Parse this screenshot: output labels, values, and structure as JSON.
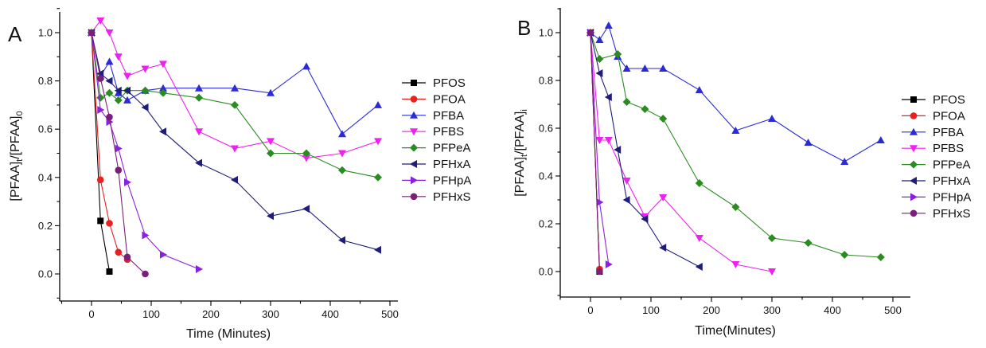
{
  "panels": [
    {
      "letter": "A",
      "x_label": "Time (Minutes)",
      "y_label_parts": [
        "[PFAA]",
        "t",
        "/[PFAA]",
        "0"
      ]
    },
    {
      "letter": "B",
      "x_label": "Time(Minutes)",
      "y_label_parts": [
        "[PFAA]",
        "t",
        "/[PFAA]",
        "i"
      ]
    }
  ],
  "chart_data": [
    {
      "type": "line",
      "panel": "A",
      "xlim": [
        -50,
        520
      ],
      "ylim": [
        -0.1,
        1.1
      ],
      "x_ticks": [
        0,
        100,
        200,
        300,
        400,
        500
      ],
      "y_ticks": [
        0.0,
        0.2,
        0.4,
        0.6,
        0.8,
        1.0
      ],
      "x_tick_labels": [
        "0",
        "100",
        "200",
        "300",
        "400",
        "500"
      ],
      "y_tick_labels": [
        "0.0",
        "0.2",
        "0.4",
        "0.6",
        "0.8",
        "1.0"
      ],
      "xlabel": "Time (Minutes)",
      "ylabel": "[PFAA]t/[PFAA]0",
      "legend_position": "right",
      "series": [
        {
          "name": "PFOS",
          "color": "#000000",
          "marker": "square",
          "x": [
            0,
            15,
            30
          ],
          "y": [
            1.0,
            0.22,
            0.01
          ]
        },
        {
          "name": "PFOA",
          "color": "#e8201f",
          "marker": "circle",
          "x": [
            0,
            15,
            30,
            45,
            60
          ],
          "y": [
            1.0,
            0.39,
            0.21,
            0.09,
            0.06
          ]
        },
        {
          "name": "PFBA",
          "color": "#2a2ad8",
          "marker": "triangle-up",
          "x": [
            0,
            15,
            30,
            45,
            60,
            90,
            120,
            180,
            240,
            300,
            360,
            420,
            480
          ],
          "y": [
            1.0,
            0.82,
            0.88,
            0.75,
            0.72,
            0.76,
            0.77,
            0.77,
            0.77,
            0.75,
            0.86,
            0.58,
            0.7
          ]
        },
        {
          "name": "PFBS",
          "color": "#f020f0",
          "marker": "triangle-down",
          "x": [
            0,
            15,
            30,
            45,
            60,
            90,
            120,
            180,
            240,
            300,
            360,
            420,
            480
          ],
          "y": [
            1.0,
            1.05,
            1.0,
            0.9,
            0.82,
            0.85,
            0.87,
            0.59,
            0.52,
            0.55,
            0.48,
            0.5,
            0.55
          ]
        },
        {
          "name": "PFPeA",
          "color": "#2a8c20",
          "marker": "diamond",
          "x": [
            0,
            15,
            30,
            45,
            60,
            90,
            120,
            180,
            240,
            300,
            360,
            420,
            480
          ],
          "y": [
            1.0,
            0.73,
            0.75,
            0.72,
            0.76,
            0.76,
            0.75,
            0.73,
            0.7,
            0.5,
            0.5,
            0.43,
            0.4
          ]
        },
        {
          "name": "PFHxA",
          "color": "#1e1e7a",
          "marker": "triangle-left",
          "x": [
            0,
            15,
            30,
            45,
            60,
            90,
            120,
            180,
            240,
            300,
            360,
            420,
            480
          ],
          "y": [
            1.0,
            0.83,
            0.8,
            0.76,
            0.76,
            0.69,
            0.59,
            0.46,
            0.39,
            0.24,
            0.27,
            0.14,
            0.1
          ]
        },
        {
          "name": "PFHpA",
          "color": "#8a20e0",
          "marker": "triangle-right",
          "x": [
            0,
            15,
            30,
            45,
            60,
            90,
            120,
            180
          ],
          "y": [
            1.0,
            0.68,
            0.63,
            0.52,
            0.38,
            0.16,
            0.08,
            0.02
          ]
        },
        {
          "name": "PFHxS",
          "color": "#7a1e7a",
          "marker": "circle",
          "x": [
            0,
            15,
            30,
            45,
            60,
            90
          ],
          "y": [
            1.0,
            0.81,
            0.65,
            0.43,
            0.07,
            0.0
          ]
        }
      ]
    },
    {
      "type": "line",
      "panel": "B",
      "xlim": [
        -50,
        520
      ],
      "ylim": [
        -0.1,
        1.1
      ],
      "x_ticks": [
        0,
        100,
        200,
        300,
        400,
        500
      ],
      "y_ticks": [
        0.0,
        0.2,
        0.4,
        0.6,
        0.8,
        1.0
      ],
      "x_tick_labels": [
        "0",
        "100",
        "200",
        "300",
        "400",
        "500"
      ],
      "y_tick_labels": [
        "0.0",
        "0.2",
        "0.4",
        "0.6",
        "0.8",
        "1.0"
      ],
      "xlabel": "Time(Minutes)",
      "ylabel": "[PFAA]t/[PFAA]i",
      "legend_position": "right",
      "series": [
        {
          "name": "PFOS",
          "color": "#000000",
          "marker": "square",
          "x": [
            0,
            15
          ],
          "y": [
            1.0,
            0.0
          ]
        },
        {
          "name": "PFOA",
          "color": "#e8201f",
          "marker": "circle",
          "x": [
            0,
            15
          ],
          "y": [
            1.0,
            0.01
          ]
        },
        {
          "name": "PFBA",
          "color": "#2a2ad8",
          "marker": "triangle-up",
          "x": [
            0,
            15,
            30,
            45,
            60,
            90,
            120,
            180,
            240,
            300,
            360,
            420,
            480
          ],
          "y": [
            1.0,
            0.97,
            1.03,
            0.9,
            0.85,
            0.85,
            0.85,
            0.76,
            0.59,
            0.64,
            0.54,
            0.46,
            0.55
          ]
        },
        {
          "name": "PFBS",
          "color": "#f020f0",
          "marker": "triangle-down",
          "x": [
            0,
            15,
            30,
            60,
            90,
            120,
            180,
            240,
            300
          ],
          "y": [
            1.0,
            0.55,
            0.55,
            0.38,
            0.23,
            0.31,
            0.14,
            0.03,
            0.0
          ]
        },
        {
          "name": "PFPeA",
          "color": "#2a8c20",
          "marker": "diamond",
          "x": [
            0,
            15,
            45,
            60,
            90,
            120,
            180,
            240,
            300,
            360,
            420,
            480
          ],
          "y": [
            1.0,
            0.89,
            0.91,
            0.71,
            0.68,
            0.64,
            0.37,
            0.27,
            0.14,
            0.12,
            0.07,
            0.06
          ]
        },
        {
          "name": "PFHxA",
          "color": "#1e1e7a",
          "marker": "triangle-left",
          "x": [
            0,
            15,
            30,
            45,
            60,
            90,
            120,
            180
          ],
          "y": [
            1.0,
            0.83,
            0.73,
            0.51,
            0.3,
            0.22,
            0.1,
            0.02
          ]
        },
        {
          "name": "PFHpA",
          "color": "#8a20e0",
          "marker": "triangle-right",
          "x": [
            0,
            15,
            30
          ],
          "y": [
            1.0,
            0.29,
            0.03
          ]
        },
        {
          "name": "PFHxS",
          "color": "#7a1e7a",
          "marker": "circle",
          "x": [
            0,
            15
          ],
          "y": [
            1.0,
            0.0
          ]
        }
      ]
    }
  ]
}
